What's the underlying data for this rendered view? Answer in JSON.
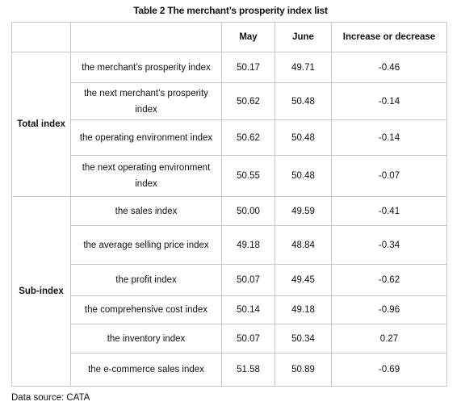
{
  "title": "Table 2 The merchant’s prosperity index list",
  "table": {
    "columns": [
      "",
      "",
      "May",
      "June",
      "Increase or decrease"
    ],
    "groups": [
      {
        "label": "Total index",
        "rows": [
          {
            "name": "the merchant’s prosperity index",
            "may": "50.17",
            "june": "49.71",
            "change": "-0.46"
          },
          {
            "name": "the next merchant’s prosperity index",
            "may": "50.62",
            "june": "50.48",
            "change": "-0.14"
          },
          {
            "name": "the operating environment index",
            "may": "50.62",
            "june": "50.48",
            "change": "-0.14"
          },
          {
            "name": "the next operating environment index",
            "may": "50.55",
            "june": "50.48",
            "change": "-0.07"
          }
        ]
      },
      {
        "label": "Sub-index",
        "rows": [
          {
            "name": "the sales index",
            "may": "50.00",
            "june": "49.59",
            "change": "-0.41"
          },
          {
            "name": "the average selling price index",
            "may": "49.18",
            "june": "48.84",
            "change": "-0.34"
          },
          {
            "name": "the profit index",
            "may": "50.07",
            "june": "49.45",
            "change": "-0.62"
          },
          {
            "name": "the comprehensive cost index",
            "may": "50.14",
            "june": "49.18",
            "change": "-0.96"
          },
          {
            "name": "the inventory index",
            "may": "50.07",
            "june": "50.34",
            "change": "0.27"
          },
          {
            "name": "the e-commerce sales index",
            "may": "51.58",
            "june": "50.89",
            "change": "-0.69"
          }
        ]
      }
    ]
  },
  "source": "Data source: CATA"
}
